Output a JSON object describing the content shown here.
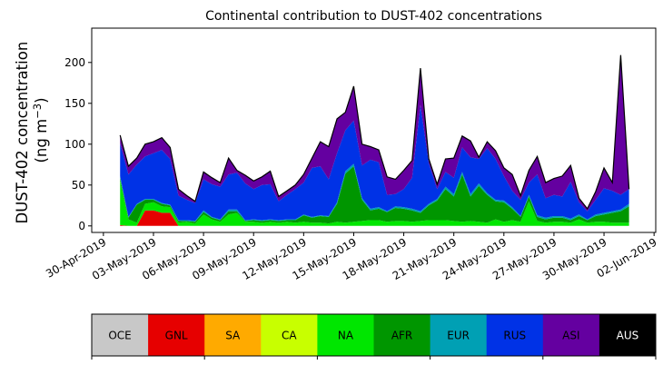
{
  "chart_data": {
    "type": "area",
    "stacked": true,
    "title": "Continental contribution to DUST-402 concentrations",
    "ylabel_line1": "DUST-402 concentration",
    "ylabel_line2_prefix": "(ng m",
    "ylabel_line2_sup": "−3",
    "ylabel_line2_suffix": ")",
    "xlabel": "",
    "ylim": [
      -8,
      242
    ],
    "yticks": [
      0,
      50,
      100,
      150,
      200
    ],
    "xlim": [
      -0.7,
      33.1
    ],
    "xticks": [
      {
        "x": 0,
        "label": "30-Apr-2019"
      },
      {
        "x": 3,
        "label": "03-May-2019"
      },
      {
        "x": 6,
        "label": "06-May-2019"
      },
      {
        "x": 9,
        "label": "09-May-2019"
      },
      {
        "x": 12,
        "label": "12-May-2019"
      },
      {
        "x": 15,
        "label": "15-May-2019"
      },
      {
        "x": 18,
        "label": "18-May-2019"
      },
      {
        "x": 21,
        "label": "21-May-2019"
      },
      {
        "x": 24,
        "label": "24-May-2019"
      },
      {
        "x": 27,
        "label": "27-May-2019"
      },
      {
        "x": 30,
        "label": "30-May-2019"
      },
      {
        "x": 33,
        "label": "02-Jun-2019"
      }
    ],
    "x": [
      1,
      1.5,
      2,
      2.5,
      3,
      3.5,
      4,
      4.5,
      5,
      5.5,
      6,
      6.5,
      7,
      7.5,
      8,
      8.5,
      9,
      9.5,
      10,
      10.5,
      11,
      11.5,
      12,
      12.5,
      13,
      13.5,
      14,
      14.5,
      15,
      15.5,
      16,
      16.5,
      17,
      17.5,
      18,
      18.5,
      19,
      19.5,
      20,
      20.5,
      21,
      21.5,
      22,
      22.5,
      23,
      23.5,
      24,
      24.5,
      25,
      25.5,
      26,
      26.5,
      27,
      27.5,
      28,
      28.5,
      29,
      29.5,
      30,
      30.5,
      31,
      31.5
    ],
    "series": [
      {
        "name": "OCE",
        "color": "#c8c8c8",
        "values": [
          0,
          0,
          0,
          0,
          0,
          0,
          0,
          0,
          0,
          0,
          0,
          0,
          0,
          0,
          0,
          0,
          0,
          0,
          0,
          0,
          0,
          0,
          0,
          0,
          0,
          0,
          0,
          0,
          0,
          0,
          0,
          0,
          0,
          0,
          0,
          0,
          0,
          0,
          0,
          0,
          0,
          0,
          0,
          0,
          0,
          0,
          0,
          0,
          0,
          0,
          0,
          0,
          0,
          0,
          0,
          0,
          0,
          0,
          0,
          0,
          0,
          0
        ]
      },
      {
        "name": "GNL",
        "color": "#e60000",
        "values": [
          1,
          0,
          0,
          19,
          19,
          16,
          16,
          0,
          0,
          0,
          0,
          0,
          0,
          0,
          0,
          0,
          0,
          0,
          0,
          0,
          0,
          0,
          0,
          0,
          0,
          0,
          0,
          0,
          0,
          0,
          0,
          0,
          0,
          0,
          0,
          0,
          0,
          0,
          0,
          0,
          0,
          0,
          0,
          0,
          0,
          0,
          0,
          0,
          0,
          0,
          0,
          0,
          0,
          0,
          0,
          0,
          0,
          0,
          0,
          0,
          0,
          0
        ]
      },
      {
        "name": "SA",
        "color": "#ffaa00",
        "values": [
          0,
          0,
          0,
          0,
          0,
          0,
          0,
          0,
          0,
          0,
          0,
          0,
          0,
          0,
          0,
          0,
          0,
          0,
          0,
          0,
          0,
          0,
          0,
          0,
          0,
          0,
          0,
          0,
          0,
          0,
          0,
          0,
          0,
          0,
          0,
          0,
          0,
          0,
          0,
          0,
          0,
          0,
          0,
          0,
          0,
          0,
          0,
          0,
          0,
          0,
          0,
          0,
          0,
          0,
          0,
          0,
          0,
          0,
          0,
          0,
          0,
          0
        ]
      },
      {
        "name": "CA",
        "color": "#c8ff00",
        "values": [
          0,
          0,
          0,
          0,
          0,
          0,
          0,
          0,
          0,
          0,
          0,
          0,
          0,
          0,
          0,
          0,
          0,
          0,
          0,
          0,
          0,
          0,
          0,
          0,
          0,
          0,
          0,
          0,
          0,
          0,
          0,
          0,
          0,
          0,
          0,
          0,
          0,
          0,
          0,
          0,
          0,
          0,
          0,
          0,
          0,
          0,
          0,
          0,
          0,
          0,
          0,
          0,
          0,
          0,
          0,
          0,
          0,
          0,
          0,
          0,
          0,
          0
        ]
      },
      {
        "name": "NA",
        "color": "#00e600",
        "values": [
          55,
          8,
          4,
          8,
          10,
          8,
          7,
          4,
          5,
          3,
          14,
          8,
          5,
          14,
          16,
          5,
          5,
          4,
          5,
          4,
          5,
          4,
          5,
          4,
          4,
          3,
          5,
          4,
          5,
          6,
          7,
          7,
          5,
          6,
          6,
          5,
          6,
          7,
          7,
          7,
          6,
          5,
          6,
          5,
          4,
          8,
          5,
          7,
          5,
          30,
          6,
          4,
          5,
          5,
          4,
          8,
          4,
          5,
          5,
          4,
          4,
          4
        ]
      },
      {
        "name": "AFR",
        "color": "#009600",
        "values": [
          3,
          2,
          22,
          5,
          3,
          3,
          2,
          2,
          1,
          2,
          3,
          2,
          2,
          4,
          2,
          1,
          2,
          2,
          2,
          2,
          2,
          3,
          8,
          6,
          8,
          8,
          22,
          60,
          68,
          26,
          12,
          14,
          12,
          16,
          15,
          14,
          10,
          18,
          24,
          38,
          30,
          58,
          30,
          44,
          34,
          22,
          24,
          14,
          6,
          6,
          5,
          4,
          5,
          5,
          3,
          4,
          3,
          7,
          9,
          12,
          14,
          20
        ]
      },
      {
        "name": "EUR",
        "color": "#00a0b4",
        "values": [
          2,
          1,
          1,
          1,
          1,
          1,
          1,
          1,
          1,
          1,
          2,
          1,
          1,
          2,
          2,
          1,
          1,
          1,
          1,
          1,
          1,
          1,
          1,
          1,
          1,
          1,
          2,
          3,
          3,
          2,
          2,
          2,
          1,
          2,
          2,
          2,
          2,
          2,
          2,
          3,
          3,
          3,
          3,
          3,
          2,
          2,
          2,
          2,
          1,
          2,
          2,
          2,
          2,
          2,
          2,
          2,
          1,
          2,
          2,
          2,
          2,
          3
        ]
      },
      {
        "name": "RUS",
        "color": "#0032e6",
        "values": [
          40,
          52,
          48,
          52,
          56,
          65,
          56,
          30,
          25,
          22,
          38,
          40,
          40,
          43,
          45,
          45,
          37,
          43,
          43,
          23,
          30,
          37,
          39,
          60,
          60,
          45,
          60,
          50,
          53,
          40,
          60,
          55,
          20,
          15,
          22,
          38,
          130,
          50,
          12,
          18,
          20,
          30,
          45,
          30,
          55,
          50,
          30,
          20,
          20,
          15,
          50,
          24,
          26,
          24,
          45,
          15,
          10,
          18,
          30,
          25,
          18,
          18
        ]
      },
      {
        "name": "ASI",
        "color": "#6400a0",
        "values": [
          10,
          10,
          8,
          15,
          14,
          15,
          14,
          8,
          5,
          2,
          9,
          8,
          5,
          20,
          3,
          10,
          10,
          10,
          16,
          6,
          5,
          5,
          10,
          12,
          30,
          40,
          42,
          22,
          42,
          26,
          16,
          15,
          22,
          18,
          23,
          21,
          45,
          5,
          6,
          16,
          24,
          14,
          20,
          2,
          8,
          10,
          10,
          20,
          5,
          15,
          22,
          19,
          20,
          25,
          20,
          5,
          3,
          10,
          25,
          10,
          171,
          0
        ]
      }
    ],
    "legend": {
      "placement": "bottom",
      "items": [
        {
          "name": "OCE",
          "color": "#c8c8c8",
          "text_color": "#000000"
        },
        {
          "name": "GNL",
          "color": "#e60000",
          "text_color": "#000000"
        },
        {
          "name": "SA",
          "color": "#ffaa00",
          "text_color": "#000000"
        },
        {
          "name": "CA",
          "color": "#c8ff00",
          "text_color": "#000000"
        },
        {
          "name": "NA",
          "color": "#00e600",
          "text_color": "#000000"
        },
        {
          "name": "AFR",
          "color": "#009600",
          "text_color": "#000000"
        },
        {
          "name": "EUR",
          "color": "#00a0b4",
          "text_color": "#000000"
        },
        {
          "name": "RUS",
          "color": "#0032e6",
          "text_color": "#000000"
        },
        {
          "name": "ASI",
          "color": "#6400a0",
          "text_color": "#000000"
        },
        {
          "name": "AUS",
          "color": "#000000",
          "text_color": "#ffffff"
        }
      ]
    },
    "total_line_color": "#000000",
    "grid": false
  }
}
